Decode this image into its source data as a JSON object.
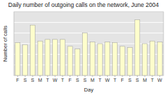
{
  "chart_data": {
    "type": "bar",
    "title": "Daily number of outgoing calls on the network, June 2004",
    "xlabel": "Day",
    "ylabel": "Number of calls",
    "categories": [
      "F",
      "S",
      "S",
      "M",
      "T",
      "W",
      "T",
      "F",
      "S",
      "S",
      "M",
      "T",
      "W",
      "T",
      "F",
      "S",
      "S",
      "M",
      "T",
      "W"
    ],
    "values": [
      6.2,
      5.8,
      9.5,
      6.5,
      6.8,
      6.8,
      6.8,
      5.5,
      5.0,
      8.0,
      6.3,
      6.0,
      6.3,
      6.2,
      5.5,
      5.3,
      10.5,
      6.0,
      6.5,
      6.3
    ],
    "color": "#ffffcc",
    "ylim": [
      0,
      12
    ],
    "yticks": [
      0,
      2,
      4,
      6,
      8,
      10,
      12
    ],
    "grid": true,
    "tick_labels": "x"
  }
}
